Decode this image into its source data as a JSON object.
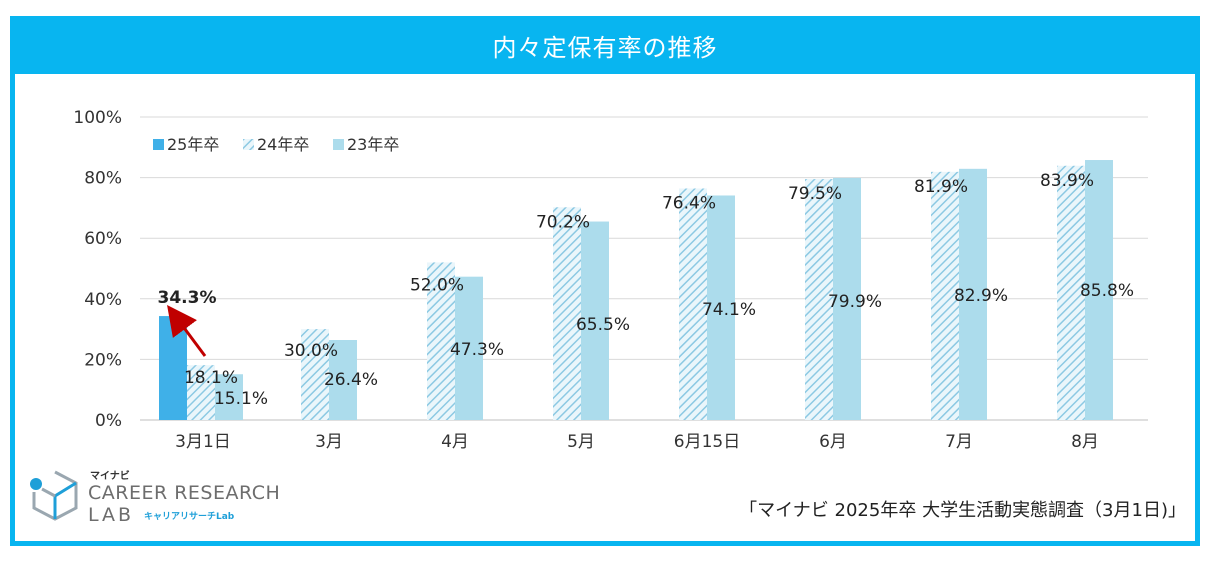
{
  "title": "内々定保有率の推移",
  "source_note": "「マイナビ 2025年卒 大学生活動実態調査（3月1日)」",
  "logo": {
    "small": "マイナビ",
    "line1": "CAREER RESEARCH",
    "line2": "LAB",
    "line2_sub": "キャリアリサーチLab"
  },
  "colors": {
    "header": "#08b5f0",
    "series_25": "#3fb0e8",
    "series_24": "#9fd3ea",
    "series_23": "#a9dcec",
    "arrow": "#c00000"
  },
  "chart_data": {
    "type": "bar",
    "title": "",
    "xlabel": "",
    "ylabel": "",
    "ylim": [
      0,
      100
    ],
    "y_ticks": [
      "0%",
      "20%",
      "40%",
      "60%",
      "80%",
      "100%"
    ],
    "grid": true,
    "legend_position": "top-left",
    "categories": [
      "3月1日",
      "3月",
      "4月",
      "5月",
      "6月15日",
      "6月",
      "7月",
      "8月"
    ],
    "series": [
      {
        "name": "25年卒",
        "pattern": "solid",
        "values": [
          34.3,
          null,
          null,
          null,
          null,
          null,
          null,
          null
        ],
        "labels": [
          "34.3%",
          "",
          "",
          "",
          "",
          "",
          "",
          ""
        ]
      },
      {
        "name": "24年卒",
        "pattern": "hatched",
        "values": [
          18.1,
          30.0,
          52.0,
          70.2,
          76.4,
          79.5,
          81.9,
          83.9
        ],
        "labels": [
          "18.1%",
          "30.0%",
          "52.0%",
          "70.2%",
          "76.4%",
          "79.5%",
          "81.9%",
          "83.9%"
        ]
      },
      {
        "name": "23年卒",
        "pattern": "solid-light",
        "values": [
          15.1,
          26.4,
          47.3,
          65.5,
          74.1,
          79.9,
          82.9,
          85.8
        ],
        "labels": [
          "15.1%",
          "26.4%",
          "47.3%",
          "65.5%",
          "74.1%",
          "79.9%",
          "82.9%",
          "85.8%"
        ]
      }
    ],
    "annotations": [
      "arrow pointing to 34.3%"
    ]
  }
}
